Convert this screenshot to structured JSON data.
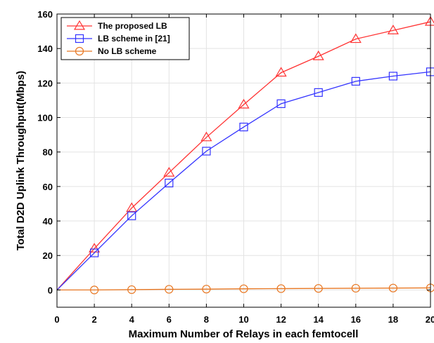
{
  "chart_data": {
    "type": "line",
    "xlabel": "Maximum Number of Relays in each femtocell",
    "ylabel": "Total D2D Uplink Throughput(Mbps)",
    "xlim": [
      0,
      20
    ],
    "ylim": [
      -10,
      160
    ],
    "xticks": [
      0,
      2,
      4,
      6,
      8,
      10,
      12,
      14,
      16,
      18,
      20
    ],
    "yticks": [
      0,
      20,
      40,
      60,
      80,
      100,
      120,
      140,
      160
    ],
    "grid": true,
    "legend_position": "top-left",
    "x": [
      0,
      2,
      4,
      6,
      8,
      10,
      12,
      14,
      16,
      18,
      20
    ],
    "series": [
      {
        "name": "The proposed LB",
        "marker": "triangle",
        "color": "#ff3333",
        "values": [
          0,
          24,
          47.5,
          68,
          88.5,
          107.5,
          126,
          135.5,
          145.5,
          150.5,
          155.5
        ]
      },
      {
        "name": "LB scheme in [21]",
        "marker": "square",
        "color": "#3333ff",
        "values": [
          0,
          21.5,
          43,
          62,
          80.5,
          94.5,
          108,
          114.5,
          121,
          124,
          126.5
        ]
      },
      {
        "name": "No LB scheme",
        "marker": "circle",
        "color": "#e87722",
        "values": [
          0,
          0,
          0.2,
          0.4,
          0.5,
          0.7,
          0.8,
          0.9,
          1.0,
          1.1,
          1.2
        ]
      }
    ]
  }
}
